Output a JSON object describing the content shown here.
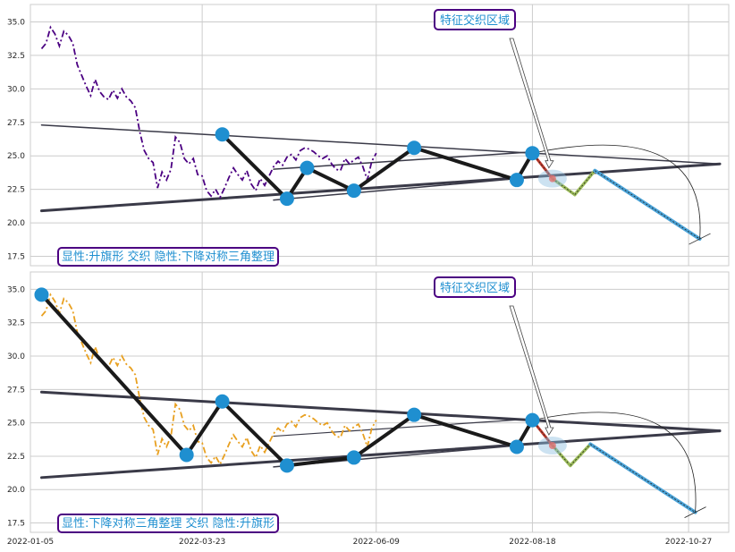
{
  "chart_data": [
    {
      "type": "line",
      "panel": "top",
      "annotation_top": "特征交织区域",
      "annotation_bottom": "显性:升旗形 交织 隐性:下降对称三角整理",
      "ylim": [
        16.8,
        36.3
      ],
      "yticks": [
        17.5,
        20.0,
        22.5,
        25.0,
        27.5,
        30.0,
        32.5,
        35.0
      ],
      "price_color": "#4b0082",
      "price_style": "dashdot",
      "pivots": [
        {
          "x": "2022-04-01",
          "y": 26.6
        },
        {
          "x": "2022-04-30",
          "y": 21.8
        },
        {
          "x": "2022-05-09",
          "y": 24.1
        },
        {
          "x": "2022-05-30",
          "y": 22.4
        },
        {
          "x": "2022-06-26",
          "y": 25.6
        },
        {
          "x": "2022-08-11",
          "y": 23.2
        },
        {
          "x": "2022-08-18",
          "y": 25.2
        }
      ],
      "projection": [
        {
          "x": "2022-08-18",
          "y": 25.2
        },
        {
          "x": "2022-08-27",
          "y": 23.3
        },
        {
          "x": "2022-09-06",
          "y": 22.1
        },
        {
          "x": "2022-09-15",
          "y": 23.9
        },
        {
          "x": "2022-11-01",
          "y": 18.8
        }
      ],
      "trendlines": [
        {
          "x1": "2022-01-10",
          "y1": 27.3,
          "x2": "2022-11-10",
          "y2": 24.4
        },
        {
          "x1": "2022-01-10",
          "y1": 20.9,
          "x2": "2022-11-10",
          "y2": 24.4
        },
        {
          "x1": "2022-04-24",
          "y1": 24.0,
          "x2": "2022-08-18",
          "y2": 25.3
        },
        {
          "x1": "2022-04-24",
          "y1": 21.7,
          "x2": "2022-08-11",
          "y2": 23.3
        }
      ]
    },
    {
      "type": "line",
      "panel": "bottom",
      "annotation_top": "特征交织区域",
      "annotation_bottom": "显性:下降对称三角整理 交织 隐性:升旗形",
      "ylim": [
        16.8,
        36.3
      ],
      "yticks": [
        17.5,
        20.0,
        22.5,
        25.0,
        27.5,
        30.0,
        32.5,
        35.0
      ],
      "xticks": [
        "2022-01-05",
        "2022-03-23",
        "2022-06-09",
        "2022-08-18",
        "2022-10-27"
      ],
      "price_color": "#e8a020",
      "price_style": "dashdot",
      "pivots": [
        {
          "x": "2022-01-10",
          "y": 34.6
        },
        {
          "x": "2022-03-16",
          "y": 22.6
        },
        {
          "x": "2022-04-01",
          "y": 26.6
        },
        {
          "x": "2022-04-30",
          "y": 21.8
        },
        {
          "x": "2022-05-30",
          "y": 22.4
        },
        {
          "x": "2022-06-26",
          "y": 25.6
        },
        {
          "x": "2022-08-11",
          "y": 23.2
        },
        {
          "x": "2022-08-18",
          "y": 25.2
        }
      ],
      "projection": [
        {
          "x": "2022-08-18",
          "y": 25.2
        },
        {
          "x": "2022-08-27",
          "y": 23.3
        },
        {
          "x": "2022-09-04",
          "y": 21.8
        },
        {
          "x": "2022-09-13",
          "y": 23.4
        },
        {
          "x": "2022-10-30",
          "y": 18.3
        }
      ],
      "trendlines": [
        {
          "x1": "2022-01-10",
          "y1": 27.3,
          "x2": "2022-11-10",
          "y2": 24.4
        },
        {
          "x1": "2022-01-10",
          "y1": 20.9,
          "x2": "2022-11-10",
          "y2": 24.4
        },
        {
          "x1": "2022-04-24",
          "y1": 24.0,
          "x2": "2022-08-18",
          "y2": 25.3
        },
        {
          "x1": "2022-04-24",
          "y1": 21.7,
          "x2": "2022-08-11",
          "y2": 23.3
        }
      ]
    }
  ],
  "price_series": {
    "x_start": "2022-01-10",
    "step_days": 2,
    "values": [
      33.0,
      33.4,
      34.6,
      34.1,
      33.2,
      34.3,
      34.0,
      33.4,
      31.8,
      31.0,
      30.2,
      29.5,
      30.7,
      29.8,
      29.4,
      29.2,
      29.9,
      29.3,
      30.0,
      29.4,
      29.1,
      28.6,
      26.8,
      25.4,
      24.8,
      24.5,
      22.6,
      23.8,
      23.2,
      24.0,
      26.4,
      26.0,
      24.8,
      24.4,
      24.8,
      23.6,
      23.5,
      22.4,
      22.0,
      22.5,
      21.9,
      22.6,
      23.4,
      24.1,
      23.6,
      23.2,
      23.9,
      22.9,
      22.4,
      23.3,
      22.8,
      23.5,
      24.2,
      24.6,
      24.3,
      24.9,
      25.1,
      24.7,
      25.4,
      25.6,
      25.5,
      25.3,
      25.0,
      24.8,
      25.0,
      24.4,
      24.0,
      23.9,
      24.8,
      24.4,
      24.7,
      24.9,
      24.2,
      23.2,
      24.6,
      25.2
    ]
  },
  "x_axis": {
    "start": "2022-01-05",
    "end": "2022-11-14"
  }
}
